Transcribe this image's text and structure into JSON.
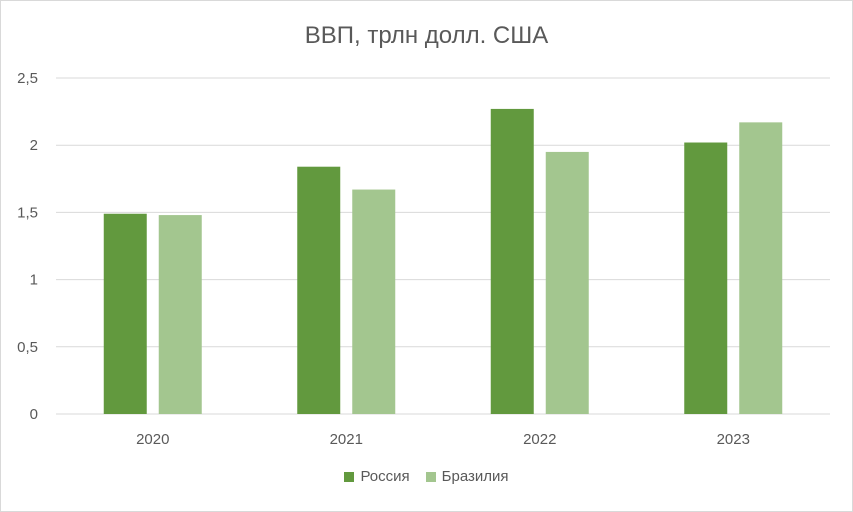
{
  "chart_data": {
    "type": "bar",
    "title": "ВВП, трлн долл. США",
    "categories": [
      "2020",
      "2021",
      "2022",
      "2023"
    ],
    "series": [
      {
        "name": "Россия",
        "color": "#62993e",
        "values": [
          1.49,
          1.84,
          2.27,
          2.02
        ]
      },
      {
        "name": "Бразилия",
        "color": "#a3c68f",
        "values": [
          1.48,
          1.67,
          1.95,
          2.17
        ]
      }
    ],
    "y_ticks": [
      "0",
      "0,5",
      "1",
      "1,5",
      "2",
      "2,5"
    ],
    "ylim": [
      0,
      2.5
    ],
    "grid": true,
    "legend_position": "bottom"
  }
}
